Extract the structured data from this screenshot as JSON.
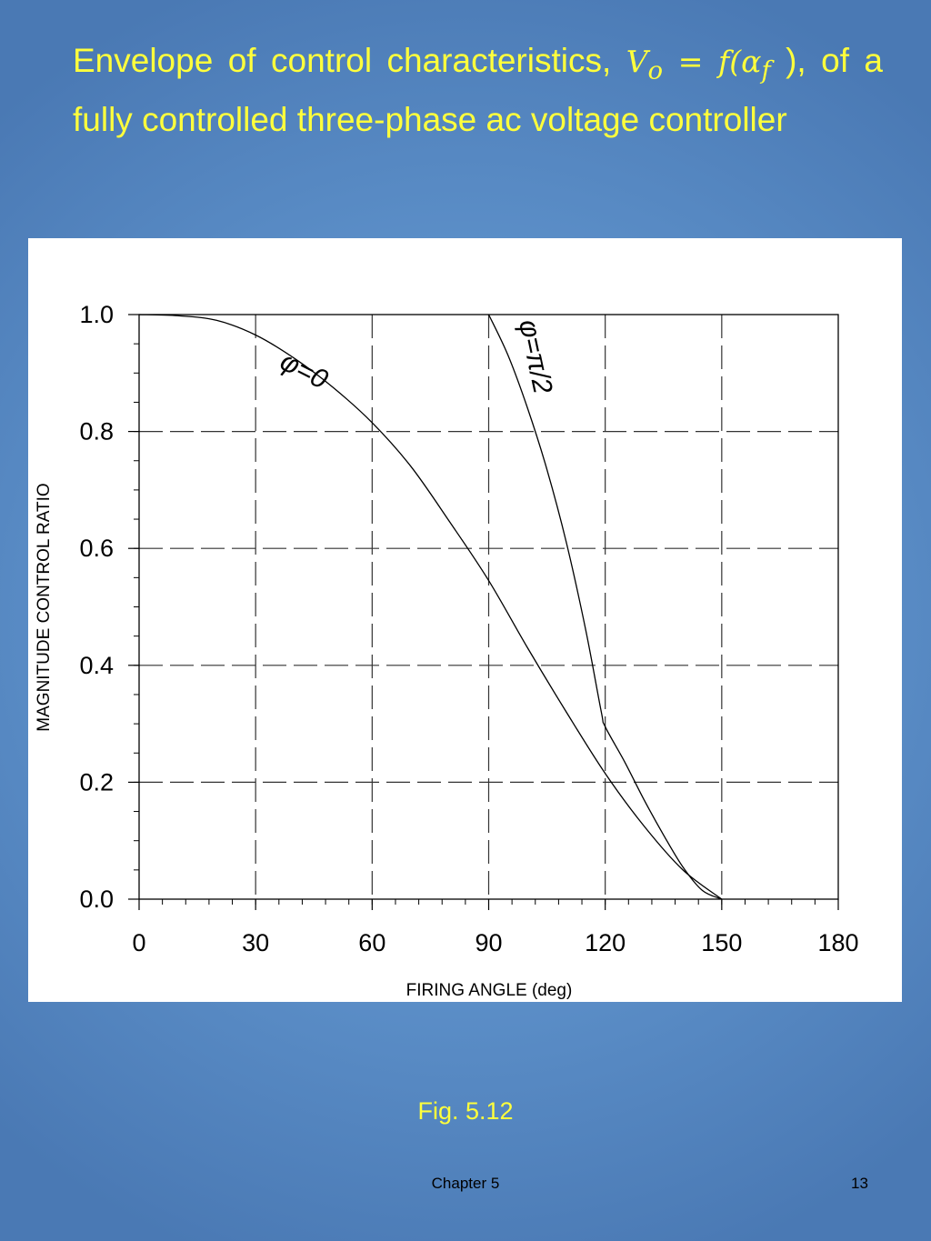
{
  "slide": {
    "title_text": "Envelope of control characteristics, ",
    "title_math_lhs": "V",
    "title_math_lhs_sub": "o",
    "title_math_eq": " = f(",
    "title_math_alpha": "α",
    "title_math_alpha_sub": "f",
    "title_math_close": " ),",
    "title_rest": " of a fully controlled three-phase ac voltage controller",
    "caption": "Fig. 5.12",
    "footer_chapter": "Chapter 5",
    "page_number": "13"
  },
  "colors": {
    "background": "#5f93cc",
    "title_text": "#ffff3c",
    "panel": "#ffffff",
    "curve": "#000000"
  },
  "chart_data": {
    "type": "line",
    "title": "",
    "xlabel": "FIRING ANGLE (deg)",
    "ylabel": "MAGNITUDE CONTROL RATIO",
    "xlim": [
      0,
      180
    ],
    "ylim": [
      0,
      1.0
    ],
    "xticks": [
      "0",
      "30",
      "60",
      "90",
      "120",
      "150",
      "180"
    ],
    "yticks": [
      "0.0",
      "0.2",
      "0.4",
      "0.6",
      "0.8",
      "1.0"
    ],
    "grid": true,
    "grid_style": "dashed",
    "series": [
      {
        "name": "φ=0",
        "x": [
          0,
          10,
          20,
          30,
          40,
          50,
          60,
          70,
          80,
          90,
          100,
          110,
          120,
          130,
          140,
          150
        ],
        "y": [
          1.0,
          0.998,
          0.99,
          0.965,
          0.925,
          0.875,
          0.815,
          0.74,
          0.645,
          0.545,
          0.43,
          0.32,
          0.215,
          0.125,
          0.05,
          0.0
        ]
      },
      {
        "name": "φ=π/2",
        "x": [
          90,
          95,
          100,
          105,
          110,
          115,
          119,
          120,
          125,
          130,
          135,
          140,
          145,
          150
        ],
        "y": [
          1.0,
          0.93,
          0.84,
          0.735,
          0.61,
          0.46,
          0.32,
          0.295,
          0.235,
          0.17,
          0.11,
          0.055,
          0.015,
          0.0
        ]
      }
    ]
  }
}
